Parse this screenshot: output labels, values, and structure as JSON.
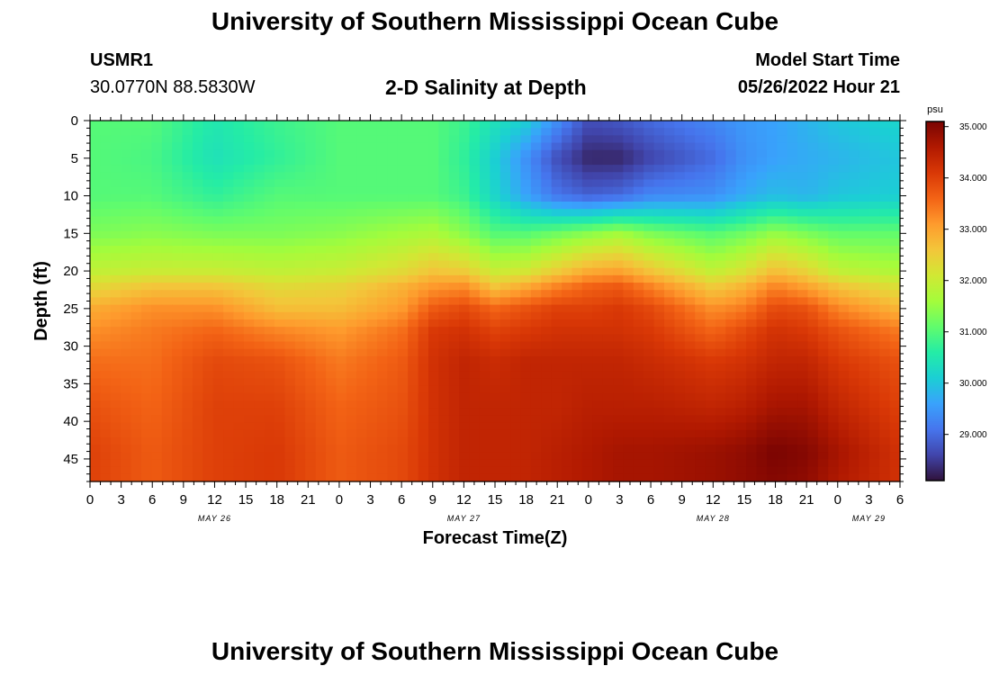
{
  "page": {
    "title_top": "University of Southern Mississippi Ocean Cube",
    "title_bottom": "University of Southern Mississippi Ocean Cube",
    "station_id": "USMR1",
    "station_coords": "30.0770N  88.5830W",
    "chart_subtitle": "2-D Salinity at Depth",
    "model_label": "Model Start Time",
    "model_time": "05/26/2022 Hour 21"
  },
  "chart_data": {
    "type": "heatmap",
    "title": "2-D Salinity at Depth",
    "xlabel": "Forecast Time(Z)",
    "ylabel": "Depth (ft)",
    "x_tick_labels": [
      "0",
      "3",
      "6",
      "9",
      "12",
      "15",
      "18",
      "21",
      "0",
      "3",
      "6",
      "9",
      "12",
      "15",
      "18",
      "21",
      "0",
      "3",
      "6",
      "9",
      "12",
      "15",
      "18",
      "21",
      "0",
      "3",
      "6"
    ],
    "x_hours": [
      0,
      3,
      6,
      9,
      12,
      15,
      18,
      21,
      24,
      27,
      30,
      33,
      36,
      39,
      42,
      45,
      48,
      51,
      54,
      57,
      60,
      63,
      66,
      69,
      72,
      75,
      78
    ],
    "date_labels": [
      {
        "label": "MAY 26",
        "hour": 12
      },
      {
        "label": "MAY 27",
        "hour": 36
      },
      {
        "label": "MAY 28",
        "hour": 60
      },
      {
        "label": "MAY 29",
        "hour": 75
      }
    ],
    "xlim": [
      0,
      78
    ],
    "y_tick_labels": [
      "0",
      "5",
      "10",
      "15",
      "20",
      "25",
      "30",
      "35",
      "40",
      "45"
    ],
    "y_values": [
      0,
      5,
      10,
      15,
      20,
      25,
      30,
      35,
      40,
      45
    ],
    "ylim": [
      0,
      48
    ],
    "y_inverted": true,
    "colorbar": {
      "unit": "psu",
      "min": 28.1,
      "max": 35.1,
      "tick_labels": [
        "35.000",
        "34.000",
        "33.000",
        "32.000",
        "31.000",
        "30.000",
        "29.000"
      ],
      "tick_values": [
        35,
        34,
        33,
        32,
        31,
        30,
        29
      ],
      "colors": [
        "#30123b",
        "#4145ab",
        "#4675ed",
        "#39a2fc",
        "#1bcfd4",
        "#24eca6",
        "#61fc6c",
        "#a4fc3b",
        "#d1e834",
        "#f3c63a",
        "#fe9b2d",
        "#f36315",
        "#d93806",
        "#b11901",
        "#7a0402"
      ]
    },
    "salinity_grid": {
      "x_hours": [
        0,
        6,
        12,
        18,
        24,
        30,
        33,
        36,
        39,
        42,
        45,
        48,
        51,
        54,
        60,
        63,
        66,
        69,
        72,
        78
      ],
      "depths": [
        0,
        5,
        10,
        15,
        20,
        22,
        25,
        28,
        32,
        38,
        44,
        48
      ],
      "values": [
        [
          31.0,
          31.0,
          30.5,
          30.8,
          31.0,
          31.0,
          31.0,
          30.8,
          30.4,
          30.1,
          29.4,
          28.7,
          28.8,
          29.0,
          29.3,
          29.5,
          29.6,
          29.8,
          30.0,
          30.2
        ],
        [
          31.0,
          30.9,
          30.4,
          30.7,
          31.0,
          31.0,
          31.0,
          30.7,
          30.1,
          29.4,
          28.7,
          28.3,
          28.3,
          28.6,
          29.0,
          29.4,
          29.6,
          29.7,
          29.8,
          30.0
        ],
        [
          31.0,
          31.0,
          30.7,
          31.0,
          31.0,
          31.0,
          31.0,
          30.8,
          30.2,
          29.6,
          29.1,
          28.9,
          29.0,
          29.3,
          29.4,
          29.7,
          29.9,
          29.8,
          30.0,
          30.1
        ],
        [
          31.3,
          31.4,
          31.3,
          31.3,
          31.4,
          31.6,
          31.7,
          31.4,
          31.0,
          31.0,
          31.2,
          31.4,
          31.6,
          31.3,
          31.0,
          31.2,
          31.5,
          31.3,
          31.1,
          31.1
        ],
        [
          31.9,
          32.0,
          32.0,
          31.9,
          32.0,
          32.3,
          32.6,
          32.5,
          32.0,
          32.1,
          32.5,
          32.9,
          33.0,
          32.6,
          31.9,
          32.2,
          32.7,
          32.4,
          31.9,
          31.7
        ],
        [
          32.3,
          32.6,
          32.6,
          32.3,
          32.4,
          32.8,
          33.1,
          33.2,
          32.6,
          32.9,
          33.3,
          33.6,
          33.7,
          33.3,
          32.5,
          32.8,
          33.3,
          33.0,
          32.6,
          32.2
        ],
        [
          32.9,
          33.2,
          33.2,
          32.7,
          32.7,
          33.1,
          33.7,
          33.9,
          33.6,
          33.8,
          34.0,
          34.0,
          34.1,
          33.9,
          33.2,
          33.4,
          33.9,
          33.8,
          33.3,
          32.8
        ],
        [
          33.2,
          33.4,
          33.6,
          33.3,
          33.1,
          33.5,
          34.1,
          34.2,
          34.0,
          34.1,
          34.2,
          34.2,
          34.2,
          34.1,
          33.6,
          33.9,
          34.2,
          34.1,
          33.8,
          33.4
        ],
        [
          33.5,
          33.5,
          33.9,
          33.8,
          33.4,
          33.7,
          34.2,
          34.4,
          34.3,
          34.4,
          34.4,
          34.4,
          34.4,
          34.3,
          34.1,
          34.2,
          34.4,
          34.4,
          34.1,
          33.8
        ],
        [
          33.8,
          33.6,
          34.0,
          34.0,
          33.6,
          33.8,
          34.2,
          34.4,
          34.4,
          34.4,
          34.4,
          34.5,
          34.5,
          34.5,
          34.4,
          34.5,
          34.7,
          34.7,
          34.4,
          34.0
        ],
        [
          34.0,
          33.7,
          34.0,
          34.1,
          33.7,
          33.9,
          34.2,
          34.4,
          34.4,
          34.4,
          34.5,
          34.6,
          34.7,
          34.7,
          34.8,
          34.9,
          35.1,
          35.0,
          34.7,
          34.2
        ],
        [
          34.0,
          33.7,
          34.0,
          34.1,
          33.7,
          33.9,
          34.2,
          34.4,
          34.4,
          34.4,
          34.5,
          34.6,
          34.7,
          34.7,
          34.8,
          34.9,
          35.0,
          34.9,
          34.6,
          34.2
        ]
      ]
    }
  }
}
